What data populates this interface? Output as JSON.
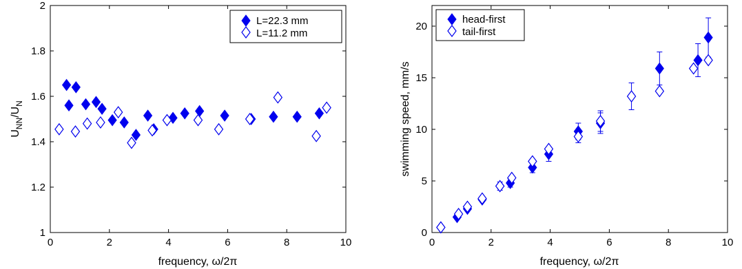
{
  "colors": {
    "marker": "#0000ee",
    "axis": "#000000"
  },
  "chart_data": [
    {
      "type": "scatter",
      "xlabel": "frequency, ω/2π",
      "ylabel": "U_NN/U_N",
      "ylabel_main": "U",
      "ylabel_sub1": "NN",
      "ylabel_mid": "/U",
      "ylabel_sub2": "N",
      "xlim": [
        0,
        10
      ],
      "ylim": [
        1,
        2
      ],
      "xticks": [
        "0",
        "2",
        "4",
        "6",
        "8",
        "10"
      ],
      "yticks": [
        "1",
        "1.2",
        "1.4",
        "1.6",
        "1.8",
        "2"
      ],
      "legend_position": "top-right",
      "legend": [
        "L=22.3 mm",
        "L=11.2 mm"
      ],
      "series": [
        {
          "name": "L=22.3 mm",
          "marker": "filled-diamond",
          "points": [
            [
              0.55,
              1.65
            ],
            [
              0.63,
              1.56
            ],
            [
              0.87,
              1.64
            ],
            [
              1.2,
              1.565
            ],
            [
              1.55,
              1.575
            ],
            [
              1.75,
              1.545
            ],
            [
              2.1,
              1.495
            ],
            [
              2.5,
              1.485
            ],
            [
              2.9,
              1.43
            ],
            [
              3.3,
              1.515
            ],
            [
              3.5,
              1.455
            ],
            [
              4.15,
              1.505
            ],
            [
              4.55,
              1.525
            ],
            [
              5.05,
              1.535
            ],
            [
              5.9,
              1.515
            ],
            [
              6.8,
              1.5
            ],
            [
              7.55,
              1.51
            ],
            [
              8.35,
              1.51
            ],
            [
              9.1,
              1.525
            ]
          ]
        },
        {
          "name": "L=11.2 mm",
          "marker": "open-diamond",
          "points": [
            [
              0.3,
              1.455
            ],
            [
              0.85,
              1.445
            ],
            [
              1.25,
              1.48
            ],
            [
              1.7,
              1.485
            ],
            [
              2.3,
              1.53
            ],
            [
              2.75,
              1.395
            ],
            [
              3.45,
              1.45
            ],
            [
              3.95,
              1.495
            ],
            [
              5.0,
              1.495
            ],
            [
              5.7,
              1.455
            ],
            [
              6.75,
              1.5
            ],
            [
              7.7,
              1.595
            ],
            [
              9.0,
              1.425
            ],
            [
              9.35,
              1.55
            ]
          ]
        }
      ]
    },
    {
      "type": "scatter",
      "xlabel": "frequency, ω/2π",
      "ylabel": "swimming speed, mm/s",
      "xlim": [
        0,
        10
      ],
      "ylim": [
        0,
        22
      ],
      "xticks": [
        "0",
        "2",
        "4",
        "6",
        "8",
        "10"
      ],
      "yticks": [
        "0",
        "5",
        "10",
        "15",
        "20"
      ],
      "legend_position": "top-left",
      "legend": [
        "head-first",
        "tail-first"
      ],
      "series": [
        {
          "name": "head-first",
          "marker": "filled-diamond",
          "points": [
            {
              "x": 0.3,
              "y": 0.5,
              "err": 0
            },
            {
              "x": 0.85,
              "y": 1.5,
              "err": 0
            },
            {
              "x": 1.2,
              "y": 2.3,
              "err": 0
            },
            {
              "x": 1.7,
              "y": 3.2,
              "err": 0
            },
            {
              "x": 2.3,
              "y": 4.5,
              "err": 0.4
            },
            {
              "x": 2.65,
              "y": 4.8,
              "err": 0.4
            },
            {
              "x": 3.4,
              "y": 6.3,
              "err": 0.5
            },
            {
              "x": 3.95,
              "y": 7.6,
              "err": 0.7
            },
            {
              "x": 4.95,
              "y": 9.8,
              "err": 0.8
            },
            {
              "x": 5.7,
              "y": 10.6,
              "err": 1.0
            },
            {
              "x": 7.7,
              "y": 15.9,
              "err": 1.6
            },
            {
              "x": 9.0,
              "y": 16.7,
              "err": 1.6
            },
            {
              "x": 9.35,
              "y": 18.9,
              "err": 1.9
            }
          ]
        },
        {
          "name": "tail-first",
          "marker": "open-diamond",
          "points": [
            {
              "x": 0.3,
              "y": 0.5,
              "err": 0
            },
            {
              "x": 0.9,
              "y": 1.8,
              "err": 0
            },
            {
              "x": 1.2,
              "y": 2.5,
              "err": 0
            },
            {
              "x": 1.7,
              "y": 3.3,
              "err": 0
            },
            {
              "x": 2.3,
              "y": 4.5,
              "err": 0
            },
            {
              "x": 2.7,
              "y": 5.3,
              "err": 0
            },
            {
              "x": 3.4,
              "y": 6.9,
              "err": 0
            },
            {
              "x": 3.95,
              "y": 8.1,
              "err": 0
            },
            {
              "x": 4.95,
              "y": 9.3,
              "err": 0.6
            },
            {
              "x": 5.7,
              "y": 10.8,
              "err": 1.0
            },
            {
              "x": 6.75,
              "y": 13.2,
              "err": 1.3
            },
            {
              "x": 7.7,
              "y": 13.7,
              "err": 0
            },
            {
              "x": 8.85,
              "y": 15.9,
              "err": 0
            },
            {
              "x": 9.35,
              "y": 16.7,
              "err": 0
            }
          ]
        }
      ]
    }
  ]
}
